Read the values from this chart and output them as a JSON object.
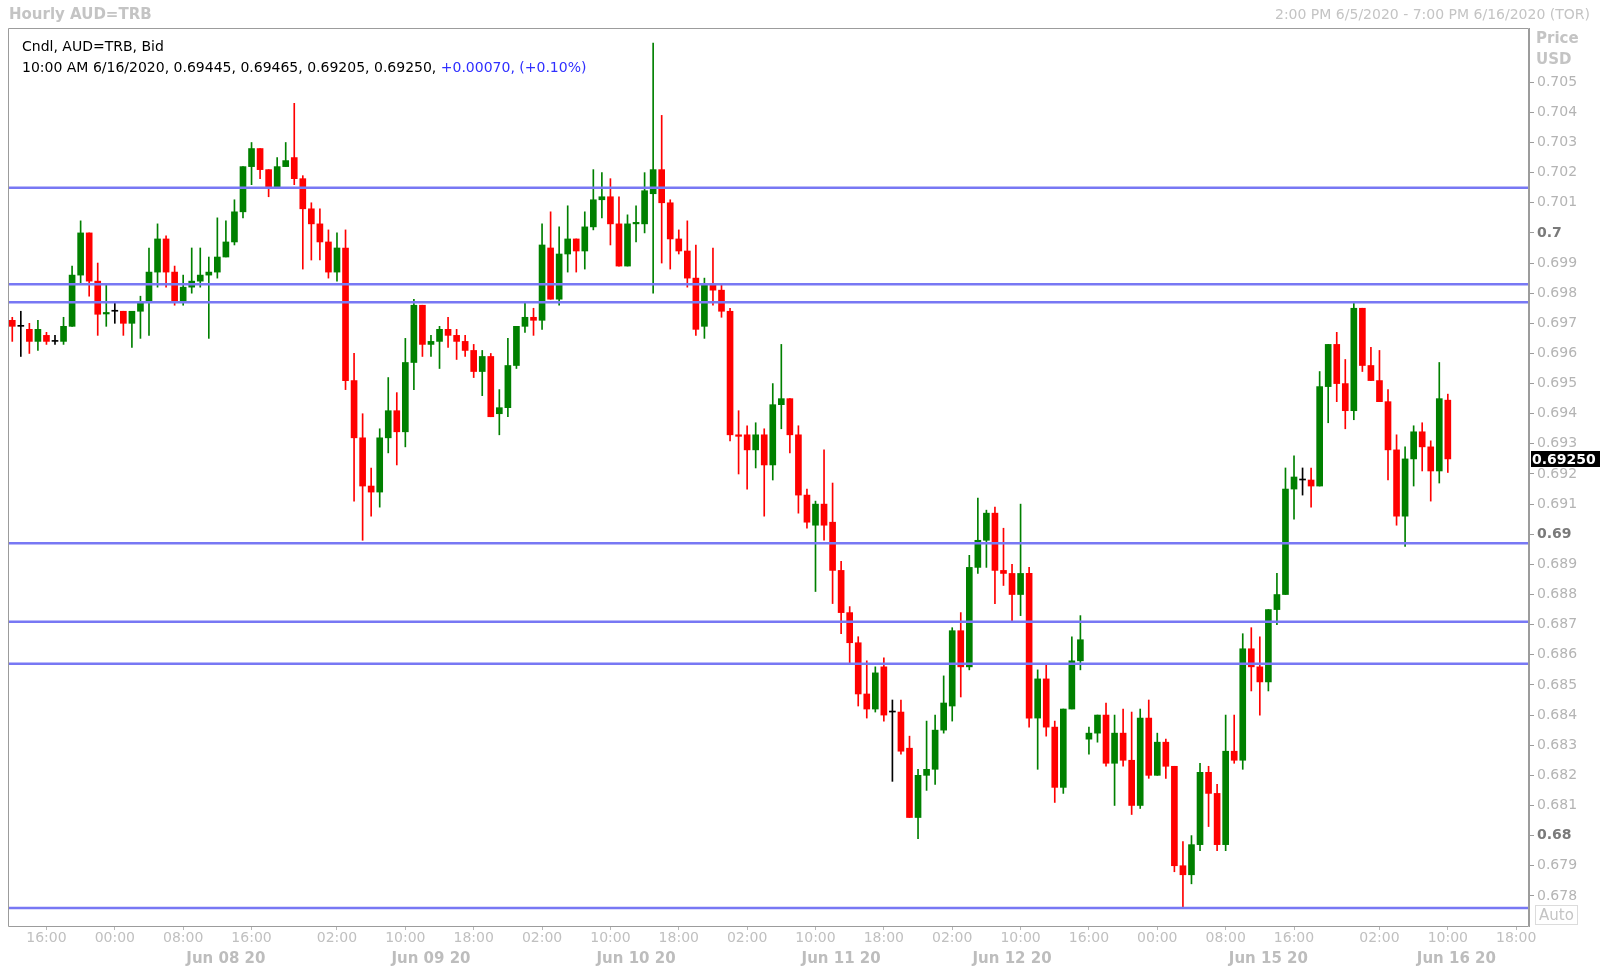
{
  "chart_data": {
    "type": "candlestick",
    "title": "Hourly AUD=TRB",
    "subtitle": "2:00 PM 6/5/2020 - 7:00 PM 6/16/2020 (TOR)",
    "ylabel": "Price USD",
    "categories": [
      null,
      null,
      null,
      null,
      "16:00",
      null,
      null,
      null,
      null,
      null,
      null,
      null,
      "00:00",
      null,
      null,
      null,
      null,
      null,
      null,
      null,
      "08:00",
      null,
      null,
      null,
      null,
      "\nJun 08 20",
      null,
      null,
      "16:00",
      null,
      null,
      null,
      null,
      null,
      null,
      null,
      null,
      null,
      "02:00",
      null,
      null,
      null,
      null,
      null,
      null,
      null,
      "10:00",
      null,
      null,
      "\nJun 09 20",
      null,
      null,
      null,
      null,
      "18:00",
      null,
      null,
      null,
      null,
      null,
      null,
      null,
      "02:00",
      null,
      null,
      null,
      null,
      null,
      null,
      null,
      "10:00",
      null,
      null,
      "\nJun 10 20",
      null,
      null,
      null,
      null,
      "18:00",
      null,
      null,
      null,
      null,
      null,
      null,
      null,
      "02:00",
      null,
      null,
      null,
      null,
      null,
      null,
      null,
      "10:00",
      null,
      null,
      "\nJun 11 20",
      null,
      null,
      null,
      null,
      "18:00",
      null,
      null,
      null,
      null,
      null,
      null,
      null,
      "02:00",
      null,
      null,
      null,
      null,
      null,
      null,
      "\nJun 12 20",
      "10:00",
      null,
      null,
      null,
      null,
      null,
      null,
      null,
      "16:00",
      null,
      null,
      null,
      null,
      null,
      null,
      null,
      "00:00",
      null,
      null,
      null,
      null,
      null,
      null,
      null,
      "08:00",
      null,
      null,
      null,
      null,
      "\nJun 15 20",
      null,
      null,
      "16:00",
      null,
      null,
      null,
      null,
      null,
      null,
      null,
      null,
      null,
      "02:00",
      null,
      null,
      null,
      null,
      null,
      null,
      null,
      "10:00",
      "\nJun 16 20",
      null,
      null,
      null,
      null,
      null,
      null,
      "18:00",
      null
    ],
    "ohlc": [
      [
        0.6971,
        0.6972,
        0.6964,
        0.6969
      ],
      [
        0.6969,
        0.6974,
        0.6959,
        0.6969
      ],
      [
        0.6968,
        0.697,
        0.696,
        0.6964
      ],
      [
        0.6964,
        0.6971,
        0.6961,
        0.6968
      ],
      [
        0.6966,
        0.6967,
        0.6963,
        0.6964
      ],
      [
        0.6964,
        0.6966,
        0.6963,
        0.6964
      ],
      [
        0.6964,
        0.6972,
        0.6963,
        0.6969
      ],
      [
        0.6969,
        0.6989,
        0.6969,
        0.6986
      ],
      [
        0.6986,
        0.7004,
        0.6983,
        0.7
      ],
      [
        0.7,
        0.7,
        0.6979,
        0.6984
      ],
      [
        0.6984,
        0.699,
        0.6966,
        0.6973
      ],
      [
        0.69731,
        0.6983,
        0.6969,
        0.69736
      ],
      [
        0.6974,
        0.6977,
        0.697,
        0.6974
      ],
      [
        0.6974,
        0.6974,
        0.6966,
        0.697
      ],
      [
        0.697,
        0.6974,
        0.6962,
        0.6974
      ],
      [
        0.6974,
        0.6979,
        0.6965,
        0.6977
      ],
      [
        0.6977,
        0.6995,
        0.6966,
        0.6987
      ],
      [
        0.6987,
        0.7003,
        0.6982,
        0.6998
      ],
      [
        0.6998,
        0.6999,
        0.6982,
        0.6987
      ],
      [
        0.6987,
        0.6989,
        0.6976,
        0.6977
      ],
      [
        0.6977,
        0.6986,
        0.6976,
        0.6982
      ],
      [
        0.6982,
        0.6995,
        0.698,
        0.6984
      ],
      [
        0.6984,
        0.6995,
        0.6982,
        0.6986
      ],
      [
        0.6986,
        0.6992,
        0.6965,
        0.6987
      ],
      [
        0.6987,
        0.7005,
        0.6985,
        0.6992
      ],
      [
        0.6992,
        0.7004,
        0.6992,
        0.6997
      ],
      [
        0.6997,
        0.7011,
        0.6996,
        0.7007
      ],
      [
        0.7007,
        0.7022,
        0.7005,
        0.7022
      ],
      [
        0.7022,
        0.703,
        0.7016,
        0.7028
      ],
      [
        0.7028,
        0.7028,
        0.7018,
        0.7021
      ],
      [
        0.7021,
        0.7021,
        0.7012,
        0.7015
      ],
      [
        0.7015,
        0.7025,
        0.7015,
        0.7022
      ],
      [
        0.7022,
        0.703,
        0.7022,
        0.7024
      ],
      [
        0.7025,
        0.7043,
        0.7016,
        0.7018
      ],
      [
        0.7018,
        0.7019,
        0.6988,
        0.7008
      ],
      [
        0.7008,
        0.701,
        0.6991,
        0.7003
      ],
      [
        0.7003,
        0.7008,
        0.6991,
        0.6997
      ],
      [
        0.6997,
        0.7001,
        0.6985,
        0.6987
      ],
      [
        0.6987,
        0.7,
        0.6984,
        0.6995
      ],
      [
        0.6995,
        0.7001,
        0.6948,
        0.6951
      ],
      [
        0.6951,
        0.696,
        0.6911,
        0.6932
      ],
      [
        0.6932,
        0.694,
        0.6898,
        0.6916
      ],
      [
        0.6916,
        0.6922,
        0.6906,
        0.6914
      ],
      [
        0.6914,
        0.6935,
        0.6909,
        0.6932
      ],
      [
        0.6932,
        0.6952,
        0.6927,
        0.6941
      ],
      [
        0.6941,
        0.6947,
        0.6923,
        0.6934
      ],
      [
        0.6934,
        0.6965,
        0.6929,
        0.6957
      ],
      [
        0.6957,
        0.6978,
        0.6948,
        0.6976
      ],
      [
        0.6976,
        0.6976,
        0.6959,
        0.6963
      ],
      [
        0.6963,
        0.6966,
        0.6959,
        0.6964
      ],
      [
        0.6964,
        0.6969,
        0.6955,
        0.6968
      ],
      [
        0.6968,
        0.6972,
        0.6962,
        0.6966
      ],
      [
        0.6966,
        0.6968,
        0.6958,
        0.6964
      ],
      [
        0.6964,
        0.6966,
        0.6959,
        0.6961
      ],
      [
        0.6961,
        0.6963,
        0.6952,
        0.6954
      ],
      [
        0.6954,
        0.6961,
        0.6946,
        0.6959
      ],
      [
        0.6959,
        0.696,
        0.6939,
        0.6939
      ],
      [
        0.694,
        0.6948,
        0.6933,
        0.6942
      ],
      [
        0.6942,
        0.6965,
        0.6939,
        0.6956
      ],
      [
        0.6956,
        0.6969,
        0.6955,
        0.6969
      ],
      [
        0.6969,
        0.6977,
        0.6967,
        0.6972
      ],
      [
        0.6972,
        0.6975,
        0.6966,
        0.6971
      ],
      [
        0.6971,
        0.7003,
        0.6968,
        0.6996
      ],
      [
        0.6995,
        0.7007,
        0.6978,
        0.6978
      ],
      [
        0.6978,
        0.7002,
        0.6976,
        0.6993
      ],
      [
        0.6993,
        0.7009,
        0.6987,
        0.6998
      ],
      [
        0.6998,
        0.6998,
        0.6987,
        0.6994
      ],
      [
        0.6994,
        0.7007,
        0.6988,
        0.7002
      ],
      [
        0.7002,
        0.7021,
        0.7001,
        0.7011
      ],
      [
        0.7011,
        0.702,
        0.7005,
        0.7012
      ],
      [
        0.7012,
        0.7018,
        0.6996,
        0.7003
      ],
      [
        0.7003,
        0.7012,
        0.6989,
        0.6989
      ],
      [
        0.6989,
        0.7006,
        0.6989,
        0.7003
      ],
      [
        0.7003,
        0.7009,
        0.6997,
        0.70035
      ],
      [
        0.7003,
        0.702,
        0.7,
        0.7014
      ],
      [
        0.7013,
        0.7063,
        0.698,
        0.7021
      ],
      [
        0.7021,
        0.7039,
        0.699,
        0.701
      ],
      [
        0.701,
        0.7011,
        0.6988,
        0.6998
      ],
      [
        0.6998,
        0.7001,
        0.6993,
        0.6994
      ],
      [
        0.6994,
        0.7004,
        0.6982,
        0.6985
      ],
      [
        0.6985,
        0.6996,
        0.6966,
        0.6968
      ],
      [
        0.6969,
        0.6985,
        0.6965,
        0.6983
      ],
      [
        0.6983,
        0.6995,
        0.6976,
        0.6981
      ],
      [
        0.6981,
        0.6983,
        0.6972,
        0.6974
      ],
      [
        0.6974,
        0.6975,
        0.6931,
        0.6933
      ],
      [
        0.6933,
        0.6941,
        0.692,
        0.69325
      ],
      [
        0.6933,
        0.6936,
        0.6915,
        0.6928
      ],
      [
        0.6928,
        0.6937,
        0.6922,
        0.6933
      ],
      [
        0.6933,
        0.6935,
        0.6906,
        0.6923
      ],
      [
        0.6923,
        0.695,
        0.6918,
        0.6943
      ],
      [
        0.6943,
        0.6963,
        0.6935,
        0.6945
      ],
      [
        0.6945,
        0.6945,
        0.6927,
        0.6933
      ],
      [
        0.6933,
        0.6936,
        0.6907,
        0.6913
      ],
      [
        0.6913,
        0.6915,
        0.6902,
        0.6904
      ],
      [
        0.6903,
        0.6911,
        0.6881,
        0.691
      ],
      [
        0.691,
        0.6928,
        0.6898,
        0.6903
      ],
      [
        0.6904,
        0.6917,
        0.6877,
        0.6888
      ],
      [
        0.6888,
        0.6891,
        0.6867,
        0.6874
      ],
      [
        0.6874,
        0.6876,
        0.6857,
        0.6864
      ],
      [
        0.6864,
        0.6866,
        0.6843,
        0.6847
      ],
      [
        0.6847,
        0.6858,
        0.6839,
        0.6842
      ],
      [
        0.6842,
        0.6856,
        0.6841,
        0.6854
      ],
      [
        0.6856,
        0.6859,
        0.6838,
        0.684
      ],
      [
        0.6841,
        0.6845,
        0.6818,
        0.6841
      ],
      [
        0.6841,
        0.6845,
        0.6827,
        0.6828
      ],
      [
        0.6829,
        0.6833,
        0.6806,
        0.6806
      ],
      [
        0.6806,
        0.6822,
        0.6799,
        0.682
      ],
      [
        0.682,
        0.6838,
        0.6815,
        0.6822
      ],
      [
        0.6822,
        0.684,
        0.6817,
        0.6835
      ],
      [
        0.6835,
        0.6853,
        0.6834,
        0.6844
      ],
      [
        0.6843,
        0.6869,
        0.6838,
        0.6868
      ],
      [
        0.6868,
        0.6874,
        0.6846,
        0.6856
      ],
      [
        0.6856,
        0.6893,
        0.6855,
        0.6889
      ],
      [
        0.6889,
        0.6912,
        0.6887,
        0.6898
      ],
      [
        0.6898,
        0.6908,
        0.6889,
        0.6907
      ],
      [
        0.6907,
        0.6909,
        0.6877,
        0.6888
      ],
      [
        0.6888,
        0.6902,
        0.6883,
        0.6887
      ],
      [
        0.6887,
        0.689,
        0.6871,
        0.688
      ],
      [
        0.688,
        0.691,
        0.6873,
        0.6887
      ],
      [
        0.6887,
        0.6889,
        0.6836,
        0.6839
      ],
      [
        0.6839,
        0.6855,
        0.6822,
        0.6852
      ],
      [
        0.6852,
        0.6857,
        0.6833,
        0.6836
      ],
      [
        0.6836,
        0.6838,
        0.6811,
        0.6816
      ],
      [
        0.6816,
        0.6842,
        0.6814,
        0.6842
      ],
      [
        0.6842,
        0.6866,
        0.6842,
        0.6858
      ],
      [
        0.6858,
        0.6873,
        0.6855,
        0.6865
      ],
      [
        0.6832,
        0.6836,
        0.6827,
        0.6834
      ],
      [
        0.6834,
        0.684,
        0.6831,
        0.684
      ],
      [
        0.684,
        0.6844,
        0.6823,
        0.6824
      ],
      [
        0.6824,
        0.684,
        0.681,
        0.6834
      ],
      [
        0.6834,
        0.6842,
        0.6823,
        0.6825
      ],
      [
        0.6825,
        0.6841,
        0.6807,
        0.681
      ],
      [
        0.681,
        0.6842,
        0.6809,
        0.6839
      ],
      [
        0.6839,
        0.6845,
        0.6819,
        0.682
      ],
      [
        0.682,
        0.6834,
        0.682,
        0.6831
      ],
      [
        0.6831,
        0.6832,
        0.6819,
        0.6823
      ],
      [
        0.6823,
        0.6823,
        0.6788,
        0.679
      ],
      [
        0.679,
        0.6798,
        0.6776,
        0.6787
      ],
      [
        0.6787,
        0.68,
        0.6784,
        0.6797
      ],
      [
        0.6797,
        0.6824,
        0.6795,
        0.6821
      ],
      [
        0.6821,
        0.6823,
        0.6803,
        0.6814
      ],
      [
        0.6814,
        0.6817,
        0.6795,
        0.6797
      ],
      [
        0.6797,
        0.684,
        0.6795,
        0.6828
      ],
      [
        0.6828,
        0.684,
        0.6824,
        0.6825
      ],
      [
        0.6825,
        0.6867,
        0.6822,
        0.6862
      ],
      [
        0.6862,
        0.6869,
        0.6848,
        0.6856
      ],
      [
        0.6856,
        0.6866,
        0.684,
        0.6851
      ],
      [
        0.6851,
        0.6875,
        0.6848,
        0.6875
      ],
      [
        0.6875,
        0.6887,
        0.687,
        0.688
      ],
      [
        0.688,
        0.6922,
        0.688,
        0.6915
      ],
      [
        0.6915,
        0.6926,
        0.6905,
        0.6919
      ],
      [
        0.6918,
        0.6922,
        0.6913,
        0.6918
      ],
      [
        0.6918,
        0.6922,
        0.6909,
        0.6916
      ],
      [
        0.6916,
        0.6954,
        0.6916,
        0.6949
      ],
      [
        0.6949,
        0.6963,
        0.6937,
        0.6963
      ],
      [
        0.6963,
        0.6967,
        0.6944,
        0.695
      ],
      [
        0.695,
        0.6958,
        0.6935,
        0.6941
      ],
      [
        0.6941,
        0.6977,
        0.6938,
        0.6975
      ],
      [
        0.6975,
        0.6975,
        0.6954,
        0.6956
      ],
      [
        0.6956,
        0.6962,
        0.6951,
        0.6951
      ],
      [
        0.6951,
        0.6961,
        0.6944,
        0.6944
      ],
      [
        0.6944,
        0.6948,
        0.6918,
        0.6928
      ],
      [
        0.6928,
        0.6933,
        0.6903,
        0.6906
      ],
      [
        0.6906,
        0.6929,
        0.6896,
        0.6925
      ],
      [
        0.6925,
        0.6936,
        0.6916,
        0.6934
      ],
      [
        0.6934,
        0.6937,
        0.6921,
        0.6929
      ],
      [
        0.6929,
        0.6931,
        0.6911,
        0.6921
      ],
      [
        0.6921,
        0.6957,
        0.6917,
        0.6945
      ],
      [
        0.69445,
        0.69465,
        0.69205,
        0.6925
      ],
      null,
      null,
      null,
      null,
      null,
      null,
      null,
      null,
      null
    ],
    "colors": [
      "#ff0000",
      "#000000",
      "#ff0000",
      "#008000",
      "#ff0000",
      "#000000",
      "#008000",
      "#008000",
      "#008000",
      "#ff0000",
      "#ff0000",
      "#008000",
      "#000000",
      "#ff0000",
      "#008000",
      "#008000",
      "#008000",
      "#008000",
      "#ff0000",
      "#ff0000",
      "#008000",
      "#008000",
      "#008000",
      "#008000",
      "#008000",
      "#008000",
      "#008000",
      "#008000",
      "#008000",
      "#ff0000",
      "#ff0000",
      "#008000",
      "#008000",
      "#ff0000",
      "#ff0000",
      "#ff0000",
      "#ff0000",
      "#ff0000",
      "#008000",
      "#ff0000",
      "#ff0000",
      "#ff0000",
      "#ff0000",
      "#008000",
      "#008000",
      "#ff0000",
      "#008000",
      "#008000",
      "#ff0000",
      "#008000",
      "#008000",
      "#ff0000",
      "#ff0000",
      "#ff0000",
      "#ff0000",
      "#008000",
      "#ff0000",
      "#008000",
      "#008000",
      "#008000",
      "#008000",
      "#ff0000",
      "#008000",
      "#ff0000",
      "#008000",
      "#008000",
      "#ff0000",
      "#008000",
      "#008000",
      "#008000",
      "#ff0000",
      "#ff0000",
      "#008000",
      "#008000",
      "#008000",
      "#008000",
      "#ff0000",
      "#ff0000",
      "#ff0000",
      "#ff0000",
      "#ff0000",
      "#008000",
      "#ff0000",
      "#ff0000",
      "#ff0000",
      "#ff0000",
      "#ff0000",
      "#008000",
      "#ff0000",
      "#008000",
      "#008000",
      "#ff0000",
      "#ff0000",
      "#ff0000",
      "#008000",
      "#ff0000",
      "#ff0000",
      "#ff0000",
      "#ff0000",
      "#ff0000",
      "#ff0000",
      "#008000",
      "#ff0000",
      "#000000",
      "#ff0000",
      "#ff0000",
      "#008000",
      "#008000",
      "#008000",
      "#008000",
      "#008000",
      "#ff0000",
      "#008000",
      "#008000",
      "#008000",
      "#ff0000",
      "#ff0000",
      "#ff0000",
      "#008000",
      "#ff0000",
      "#008000",
      "#ff0000",
      "#ff0000",
      "#008000",
      "#008000",
      "#008000",
      "#008000",
      "#008000",
      "#ff0000",
      "#008000",
      "#ff0000",
      "#ff0000",
      "#008000",
      "#ff0000",
      "#008000",
      "#ff0000",
      "#ff0000",
      "#ff0000",
      "#008000",
      "#008000",
      "#ff0000",
      "#ff0000",
      "#008000",
      "#ff0000",
      "#008000",
      "#ff0000",
      "#ff0000",
      "#008000",
      "#008000",
      "#008000",
      "#008000",
      "#000000",
      "#ff0000",
      "#008000",
      "#008000",
      "#ff0000",
      "#ff0000",
      "#008000",
      "#ff0000",
      "#ff0000",
      "#ff0000",
      "#ff0000",
      "#ff0000",
      "#008000",
      "#008000",
      "#ff0000",
      "#ff0000",
      "#008000",
      "#ff0000",
      null,
      null,
      null,
      null,
      null,
      null,
      null,
      null,
      null
    ],
    "ylim": [
      0.677,
      0.7068
    ],
    "yticks": [
      0.678,
      0.679,
      0.68,
      0.681,
      0.682,
      0.683,
      0.684,
      0.685,
      0.686,
      0.687,
      0.688,
      0.689,
      0.69,
      0.691,
      0.692,
      0.693,
      0.694,
      0.695,
      0.696,
      0.697,
      0.698,
      0.699,
      0.7,
      0.701,
      0.702,
      0.703,
      0.704,
      0.705
    ],
    "ref_lines": [
      {
        "axis": "y",
        "value": 0.7015,
        "color": "#7878f4"
      },
      {
        "axis": "y",
        "value": 0.6983,
        "color": "#7878f4"
      },
      {
        "axis": "y",
        "value": 0.6977,
        "color": "#7878f4"
      },
      {
        "axis": "y",
        "value": 0.6897,
        "color": "#7878f4"
      },
      {
        "axis": "y",
        "value": 0.6871,
        "color": "#7878f4"
      },
      {
        "axis": "y",
        "value": 0.6857,
        "color": "#7878f4"
      },
      {
        "axis": "y",
        "value": 0.6776,
        "color": "#7878f4"
      }
    ],
    "annotations": [
      "Cndl, AUD=TRB, Bid",
      "10:00 AM 6/16/2020, 0.69445, 0.69465, 0.69205, 0.69250,",
      "+0.00070, (+0.10%)",
      "0.69250",
      "Auto"
    ]
  }
}
